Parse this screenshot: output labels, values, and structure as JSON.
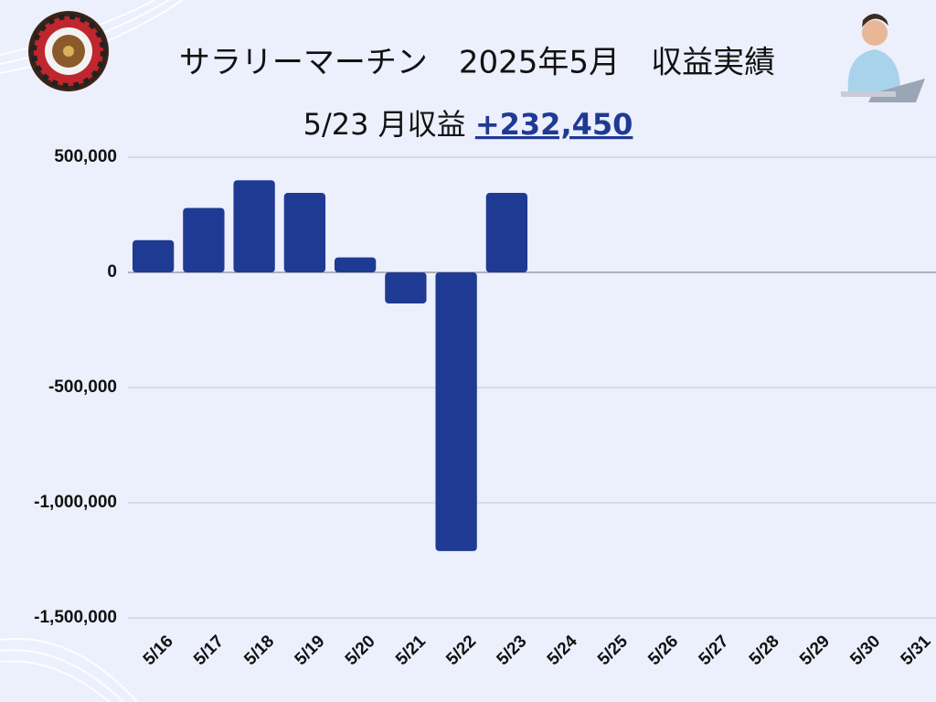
{
  "chart_data": {
    "type": "bar",
    "title": "サラリーマーチン　2025年5月　収益実績",
    "subtitle": "5/23 月収益",
    "total_label": "+232,450",
    "categories": [
      "5/16",
      "5/17",
      "5/18",
      "5/19",
      "5/20",
      "5/21",
      "5/22",
      "5/23",
      "5/24",
      "5/25",
      "5/26",
      "5/27",
      "5/28",
      "5/29",
      "5/30",
      "5/31"
    ],
    "values": [
      140000,
      280000,
      400000,
      345000,
      65000,
      -135000,
      -1210000,
      345000,
      null,
      null,
      null,
      null,
      null,
      null,
      null,
      null
    ],
    "color": "#1f3a93",
    "ylim": [
      -1500000,
      500000
    ],
    "yticks": [
      {
        "value": -1500000,
        "label": "-1,500,000"
      },
      {
        "value": -1000000,
        "label": "-1,000,000"
      },
      {
        "value": -500000,
        "label": "-500,000"
      },
      0,
      {
        "value": 500000,
        "label": "500,000"
      }
    ],
    "grid": true
  }
}
